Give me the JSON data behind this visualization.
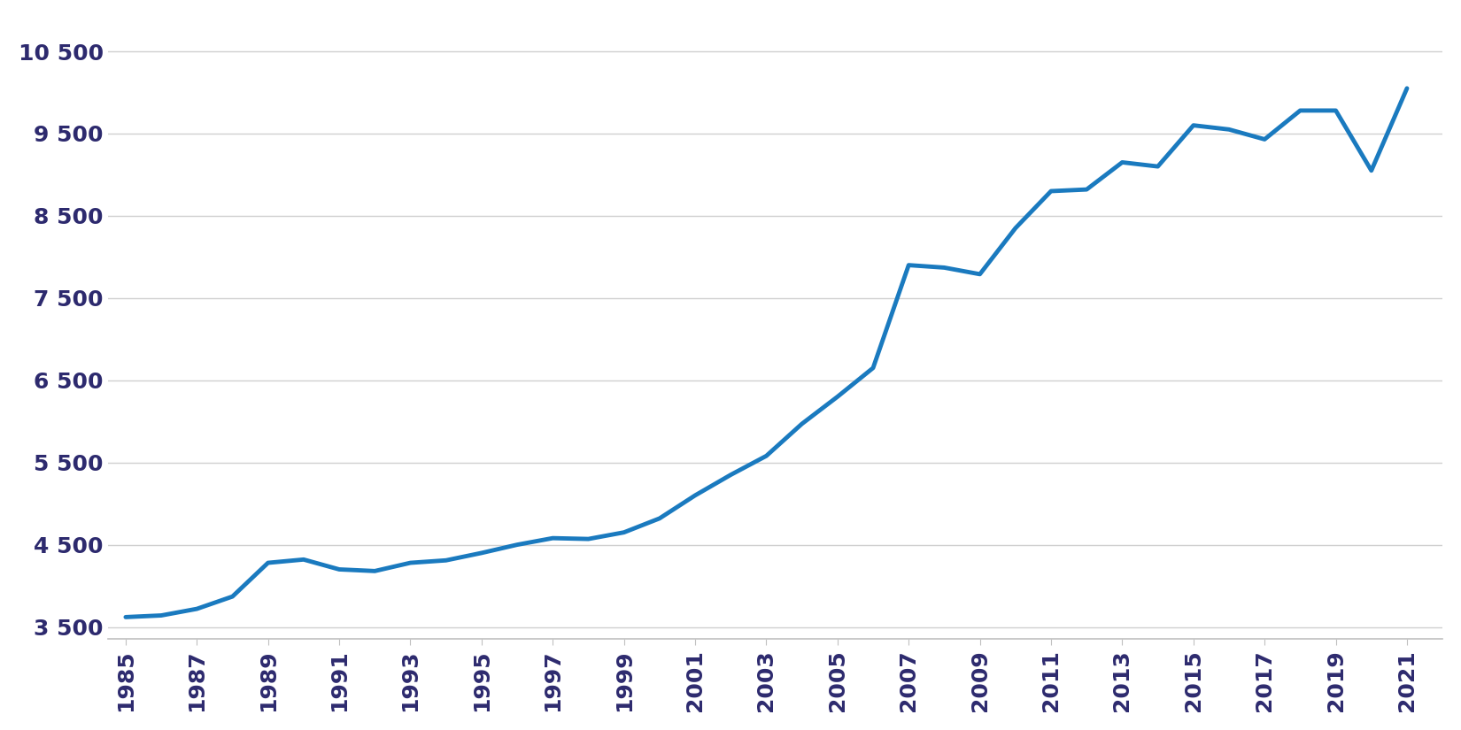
{
  "years": [
    1985,
    1986,
    1987,
    1988,
    1989,
    1990,
    1991,
    1992,
    1993,
    1994,
    1995,
    1996,
    1997,
    1998,
    1999,
    2000,
    2001,
    2002,
    2003,
    2004,
    2005,
    2006,
    2007,
    2008,
    2009,
    2010,
    2011,
    2012,
    2013,
    2014,
    2015,
    2016,
    2017,
    2018,
    2019,
    2020,
    2021
  ],
  "values": [
    3620,
    3640,
    3720,
    3870,
    4280,
    4320,
    4200,
    4180,
    4280,
    4310,
    4400,
    4500,
    4580,
    4570,
    4650,
    4820,
    5100,
    5350,
    5580,
    5970,
    6300,
    6650,
    7900,
    7870,
    7790,
    8350,
    8800,
    8820,
    9150,
    9100,
    9600,
    9550,
    9430,
    9780,
    9780,
    9050,
    10050
  ],
  "line_color": "#1a7abf",
  "line_width": 3.5,
  "yticks": [
    3500,
    4500,
    5500,
    6500,
    7500,
    8500,
    9500,
    10500
  ],
  "ylim": [
    3350,
    10900
  ],
  "xlim": [
    1984.5,
    2022.0
  ],
  "xticks": [
    1985,
    1987,
    1989,
    1991,
    1993,
    1995,
    1997,
    1999,
    2001,
    2003,
    2005,
    2007,
    2009,
    2011,
    2013,
    2015,
    2017,
    2019,
    2021
  ],
  "tick_label_color": "#2d2a6e",
  "tick_fontsize": 18,
  "background_color": "#ffffff",
  "axis_line_color": "#c0c0c0",
  "grid_color": "#d0d0d0"
}
